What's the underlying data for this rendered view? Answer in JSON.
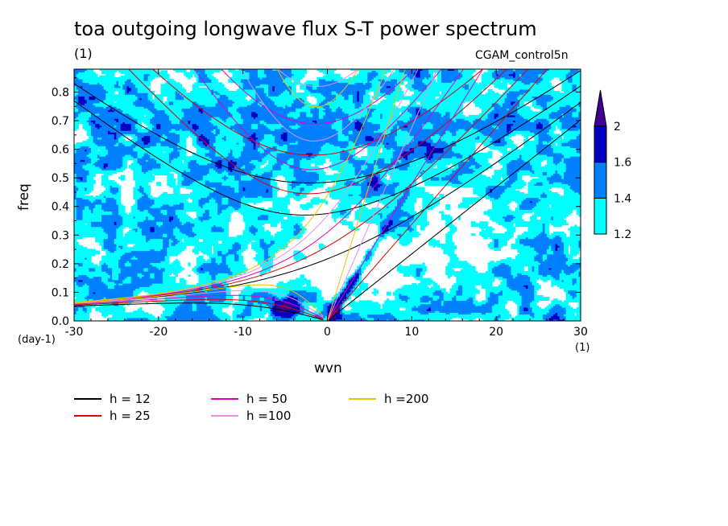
{
  "figure": {
    "title": "toa outgoing longwave flux S-T power spectrum",
    "title_unit": "(1)",
    "run_name": "CGAM_control5n"
  },
  "chart_data": {
    "type": "heatmap",
    "xlabel": "wvn",
    "ylabel": "freq",
    "x_unit": "(1)",
    "y_unit": "(day-1)",
    "xlim": [
      -30,
      30
    ],
    "ylim": [
      0,
      0.88
    ],
    "x_ticks": [
      -30,
      -20,
      -10,
      0,
      10,
      20,
      30
    ],
    "x_tick_labels": [
      "-30",
      "-20",
      "-10",
      "0",
      "10",
      "20",
      "30"
    ],
    "y_ticks": [
      0,
      0.1,
      0.2,
      0.3,
      0.4,
      0.5,
      0.6,
      0.7,
      0.8
    ],
    "y_tick_labels": [
      "0.0",
      "0.1",
      "0.2",
      "0.3",
      "0.4",
      "0.5",
      "0.6",
      "0.7",
      "0.8"
    ],
    "grid": false,
    "shade_levels": [
      1.2,
      1.4,
      1.6,
      2
    ],
    "shade_colors": [
      "#ffffff",
      "#00ffff",
      "#0080ff",
      "#0000c0",
      "#400090"
    ],
    "colorbar_labels": [
      "1.2",
      "1.4",
      "1.6",
      "2"
    ],
    "colorbar_position": "right",
    "dispersion_curves": [
      {
        "label": "h = 12",
        "h": 12,
        "color": "#000000"
      },
      {
        "label": "h = 25",
        "h": 25,
        "color": "#e00000"
      },
      {
        "label": "h = 50",
        "h": 50,
        "color": "#e000c0"
      },
      {
        "label": "h =100",
        "h": 100,
        "color": "#e890e8"
      },
      {
        "label": "h =200",
        "h": 200,
        "color": "#f0c000"
      }
    ],
    "legend_position": "bottom-left"
  }
}
